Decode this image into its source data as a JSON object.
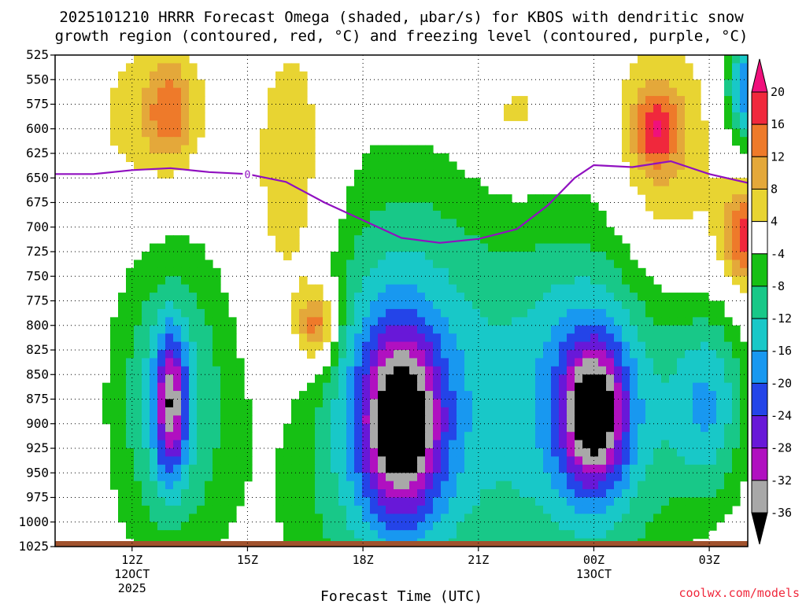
{
  "chart_data": {
    "type": "heatmap",
    "title_line1": "2025101210 HRRR Forecast Omega (shaded, μbar/s) for KBOS with dendritic snow",
    "title_line2": "growth region (contoured, red, °C) and freezing level (contoured, purple, °C)",
    "xlabel": "Forecast Time (UTC)",
    "credit": "coolwx.com/models",
    "y_axis": {
      "scale": "pressure",
      "units": "hPa",
      "range": [
        1025,
        525
      ],
      "tick_labels": [
        "525",
        "550",
        "575",
        "600",
        "625",
        "650",
        "675",
        "700",
        "725",
        "750",
        "775",
        "800",
        "825",
        "850",
        "875",
        "900",
        "925",
        "950",
        "975",
        "1000",
        "1025"
      ]
    },
    "x_axis": {
      "range_hours": [
        10,
        28
      ],
      "ticks": [
        {
          "hour": 12,
          "label": "12Z",
          "sub1": "12OCT",
          "sub2": "2025"
        },
        {
          "hour": 15,
          "label": "15Z",
          "sub1": "",
          "sub2": ""
        },
        {
          "hour": 18,
          "label": "18Z",
          "sub1": "",
          "sub2": ""
        },
        {
          "hour": 21,
          "label": "21Z",
          "sub1": "",
          "sub2": ""
        },
        {
          "hour": 24,
          "label": "00Z",
          "sub1": "13OCT",
          "sub2": ""
        },
        {
          "hour": 27,
          "label": "03Z",
          "sub1": "",
          "sub2": ""
        }
      ]
    },
    "colorbar": {
      "labels": [
        "20",
        "16",
        "12",
        "8",
        "4",
        "-4",
        "-8",
        "-12",
        "-16",
        "-20",
        "-24",
        "-28",
        "-32",
        "-36"
      ],
      "bands": [
        {
          "from": 16,
          "to": 20,
          "color": "#f0283c"
        },
        {
          "from": 12,
          "to": 16,
          "color": "#ee7a2a"
        },
        {
          "from": 8,
          "to": 12,
          "color": "#e4a83a"
        },
        {
          "from": 4,
          "to": 8,
          "color": "#e8d432"
        },
        {
          "from": -4,
          "to": 4,
          "color": "#ffffff"
        },
        {
          "from": -8,
          "to": -4,
          "color": "#16c014"
        },
        {
          "from": -12,
          "to": -8,
          "color": "#18c888"
        },
        {
          "from": -16,
          "to": -12,
          "color": "#18c8c8"
        },
        {
          "from": -20,
          "to": -16,
          "color": "#1898f0"
        },
        {
          "from": -24,
          "to": -20,
          "color": "#2444e8"
        },
        {
          "from": -28,
          "to": -24,
          "color": "#6818d8"
        },
        {
          "from": -32,
          "to": -28,
          "color": "#b010c0"
        },
        {
          "from": -36,
          "to": -32,
          "color": "#a8a8a8"
        }
      ],
      "max_arrow_color": "#f0107c",
      "min_arrow_color": "#000000"
    },
    "freezing_level": {
      "color": "#9010c0",
      "label": "0",
      "points": [
        {
          "hour": 10.0,
          "p": 646
        },
        {
          "hour": 11.0,
          "p": 646
        },
        {
          "hour": 12.0,
          "p": 642
        },
        {
          "hour": 13.0,
          "p": 640
        },
        {
          "hour": 14.0,
          "p": 644
        },
        {
          "hour": 15.0,
          "p": 646
        },
        {
          "hour": 16.0,
          "p": 654
        },
        {
          "hour": 17.0,
          "p": 675
        },
        {
          "hour": 18.0,
          "p": 693
        },
        {
          "hour": 19.0,
          "p": 711
        },
        {
          "hour": 20.0,
          "p": 716
        },
        {
          "hour": 21.0,
          "p": 712
        },
        {
          "hour": 22.0,
          "p": 702
        },
        {
          "hour": 22.8,
          "p": 678
        },
        {
          "hour": 23.5,
          "p": 650
        },
        {
          "hour": 24.0,
          "p": 637
        },
        {
          "hour": 25.0,
          "p": 639
        },
        {
          "hour": 26.0,
          "p": 633
        },
        {
          "hour": 27.0,
          "p": 646
        },
        {
          "hour": 28.0,
          "p": 655
        }
      ]
    },
    "ground_color": "#a0522d",
    "omega_features": [
      {
        "name": "pos-early-upper",
        "center": [
          12.5,
          590
        ],
        "radius": [
          1.6,
          85
        ],
        "value": 7
      },
      {
        "name": "pos-early-core",
        "center": [
          13.0,
          580
        ],
        "radius": [
          0.6,
          50
        ],
        "value": 10
      },
      {
        "name": "pos-narrow-column",
        "center": [
          16.2,
          690
        ],
        "radius": [
          1.2,
          200
        ],
        "value": 9
      },
      {
        "name": "pos-column-core",
        "center": [
          16.8,
          800
        ],
        "radius": [
          0.5,
          40
        ],
        "value": 17
      },
      {
        "name": "pos-upper-mid",
        "center": [
          19.5,
          560
        ],
        "radius": [
          1.4,
          40
        ],
        "value": 5
      },
      {
        "name": "pos-upper-right",
        "center": [
          22.0,
          590
        ],
        "radius": [
          1.3,
          60
        ],
        "value": 6
      },
      {
        "name": "pos-late",
        "center": [
          25.8,
          630
        ],
        "radius": [
          1.4,
          130
        ],
        "value": 9
      },
      {
        "name": "pos-late-core",
        "center": [
          25.6,
          600
        ],
        "radius": [
          0.6,
          40
        ],
        "value": 13
      },
      {
        "name": "pos-late-edge",
        "center": [
          28.0,
          710
        ],
        "radius": [
          0.7,
          55
        ],
        "value": 18
      },
      {
        "name": "neg-early",
        "center": [
          13.0,
          880
        ],
        "radius": [
          1.5,
          160
        ],
        "value": -14
      },
      {
        "name": "neg-early-core",
        "center": [
          13.0,
          880
        ],
        "radius": [
          0.4,
          70
        ],
        "value": -22
      },
      {
        "name": "neg-main",
        "center": [
          19.0,
          880
        ],
        "radius": [
          3.0,
          230
        ],
        "value": -18
      },
      {
        "name": "neg-main-core",
        "center": [
          19.0,
          900
        ],
        "radius": [
          1.0,
          90
        ],
        "value": -28
      },
      {
        "name": "neg-right",
        "center": [
          24.0,
          880
        ],
        "radius": [
          2.2,
          180
        ],
        "value": -18
      },
      {
        "name": "neg-right-core",
        "center": [
          24.0,
          890
        ],
        "radius": [
          0.8,
          70
        ],
        "value": -26
      },
      {
        "name": "neg-far-right",
        "center": [
          27.0,
          880
        ],
        "radius": [
          1.0,
          100
        ],
        "value": -14
      },
      {
        "name": "neg-top-right",
        "center": [
          28.0,
          560
        ],
        "radius": [
          0.6,
          60
        ],
        "value": -20
      }
    ]
  }
}
